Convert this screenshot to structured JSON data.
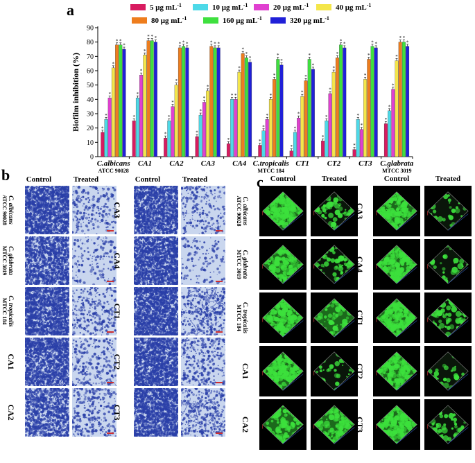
{
  "panels": {
    "a": "a",
    "b": "b",
    "c": "c"
  },
  "chart_data": {
    "type": "bar",
    "ylabel": "Biofilm inhibition (%)",
    "ylim": [
      0,
      90
    ],
    "yticks": [
      0,
      10,
      20,
      30,
      40,
      50,
      60,
      70,
      80,
      90
    ],
    "categories": [
      {
        "name": "C.albicans",
        "sub": "ATCC 90028",
        "italic": true
      },
      {
        "name": "CA1",
        "sub": "",
        "italic": true
      },
      {
        "name": "CA2",
        "sub": "",
        "italic": true
      },
      {
        "name": "CA3",
        "sub": "",
        "italic": true
      },
      {
        "name": "CA4",
        "sub": "",
        "italic": true
      },
      {
        "name": "C.tropicalis",
        "sub": "MTCC 184",
        "italic": true
      },
      {
        "name": "CT1",
        "sub": "",
        "italic": true
      },
      {
        "name": "CT2",
        "sub": "",
        "italic": true
      },
      {
        "name": "CT3",
        "sub": "",
        "italic": true
      },
      {
        "name": "C.glabrata",
        "sub": "MTCC 3019",
        "italic": true
      }
    ],
    "legend_placement": "top",
    "series": [
      {
        "name": "5 μg mL",
        "sup": "-1",
        "color": "#d81b60",
        "values": [
          17,
          25,
          13,
          14,
          9,
          8,
          4,
          11,
          5,
          23
        ]
      },
      {
        "name": "10 μg mL",
        "sup": "-1",
        "color": "#4dd9e8",
        "values": [
          26,
          41,
          25,
          29,
          40,
          18,
          17,
          25,
          26,
          32
        ]
      },
      {
        "name": "20 μg mL",
        "sup": "-1",
        "color": "#e040d0",
        "values": [
          41,
          57,
          35,
          38,
          40,
          26,
          27,
          44,
          19,
          47
        ]
      },
      {
        "name": "40 μg mL",
        "sup": "-1",
        "color": "#f4e64a",
        "values": [
          62,
          71,
          50,
          46,
          59,
          40,
          42,
          59,
          54,
          67
        ]
      },
      {
        "name": "80 μg mL",
        "sup": "-1",
        "color": "#ee7d1d",
        "values": [
          78,
          81,
          76,
          77,
          72,
          54,
          53,
          69,
          68,
          80
        ]
      },
      {
        "name": "160 μg mL",
        "sup": "-1",
        "color": "#3fe03f",
        "values": [
          78,
          81,
          77,
          76,
          69,
          68,
          68,
          78,
          77,
          80
        ]
      },
      {
        "name": "320 μg mL",
        "sup": "-1",
        "color": "#2020d8",
        "values": [
          75,
          80,
          76,
          76,
          66,
          64,
          61,
          76,
          76,
          77
        ]
      }
    ],
    "sig_marker": "*"
  },
  "panel_b": {
    "headers": {
      "control": "Control",
      "treated": "Treated"
    },
    "left_rows": [
      {
        "name": "C. albicans",
        "sub": "ATCC 90028",
        "italic": true
      },
      {
        "name": "C. glabrata",
        "sub": "MTCC 3019",
        "italic": true
      },
      {
        "name": "C. tropicalis",
        "sub": "MTCC 184",
        "italic": true
      },
      {
        "name": "CA1",
        "sub": "",
        "italic": false
      },
      {
        "name": "CA2",
        "sub": "",
        "italic": false
      }
    ],
    "right_rows": [
      {
        "name": "CA3",
        "sub": "",
        "italic": false
      },
      {
        "name": "CA4",
        "sub": "",
        "italic": false
      },
      {
        "name": "CT1",
        "sub": "",
        "italic": false
      },
      {
        "name": "CT2",
        "sub": "",
        "italic": false
      },
      {
        "name": "CT3",
        "sub": "",
        "italic": false
      }
    ],
    "stain_color": "#2a3fa8",
    "background_color": "#c9d6ee"
  },
  "panel_c": {
    "headers": {
      "control": "Control",
      "treated": "Treated"
    },
    "left_rows": [
      {
        "name": "C. albicans",
        "sub": "ATCC 90028",
        "italic": true
      },
      {
        "name": "C. glabrata",
        "sub": "MTCC 3019",
        "italic": true
      },
      {
        "name": "C. tropicalis",
        "sub": "MTCC 184",
        "italic": true
      },
      {
        "name": "CA1",
        "sub": "",
        "italic": false
      },
      {
        "name": "CA2",
        "sub": "",
        "italic": false
      }
    ],
    "right_rows": [
      {
        "name": "CA3",
        "sub": "",
        "italic": false
      },
      {
        "name": "CA4",
        "sub": "",
        "italic": false
      },
      {
        "name": "CT1",
        "sub": "",
        "italic": false
      },
      {
        "name": "CT2",
        "sub": "",
        "italic": false
      },
      {
        "name": "CT3",
        "sub": "",
        "italic": false
      }
    ],
    "fluor_color": "#3ce03c"
  }
}
